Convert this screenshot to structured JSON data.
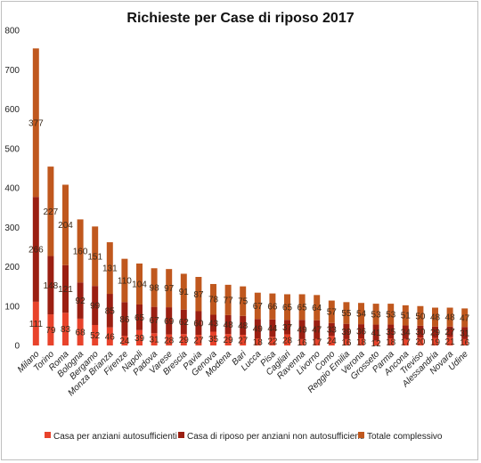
{
  "chart_data": {
    "type": "bar",
    "stacked": true,
    "title": "Richieste per Case di riposo 2017",
    "xlabel": "",
    "ylabel": "",
    "ylim": [
      0,
      800
    ],
    "yticks": [
      0,
      100,
      200,
      300,
      400,
      500,
      600,
      700,
      800
    ],
    "grid": false,
    "legend_position": "bottom",
    "categories": [
      "Milano",
      "Torino",
      "Roma",
      "Bologna",
      "Bergamo",
      "Monza Brianza",
      "Firenze",
      "Napoli",
      "Padova",
      "Varese",
      "Brescia",
      "Pavia",
      "Genova",
      "Modena",
      "Bari",
      "Lucca",
      "Pisa",
      "Cagliari",
      "Ravenna",
      "Livorno",
      "Como",
      "Reggio Emilia",
      "Verona",
      "Grosseto",
      "Parma",
      "Ancona",
      "Treviso",
      "Alessandria",
      "Novara",
      "Udine"
    ],
    "series": [
      {
        "name": "Casa per anziani autosufficienti",
        "color": "#e8432b",
        "values": [
          111,
          79,
          83,
          68,
          52,
          46,
          24,
          39,
          31,
          28,
          29,
          27,
          35,
          29,
          27,
          18,
          22,
          28,
          16,
          17,
          24,
          16,
          18,
          12,
          18,
          17,
          20,
          19,
          21,
          16
        ]
      },
      {
        "name": "Casa di riposo per anziani non autosufficienti",
        "color": "#9b1f12",
        "values": [
          266,
          148,
          121,
          92,
          99,
          85,
          86,
          65,
          67,
          69,
          62,
          60,
          43,
          48,
          48,
          49,
          44,
          37,
          49,
          47,
          33,
          39,
          36,
          41,
          35,
          34,
          30,
          29,
          27,
          31
        ]
      },
      {
        "name": "Totale complessivo",
        "color": "#c0581e",
        "values": [
          377,
          227,
          204,
          160,
          151,
          131,
          110,
          104,
          98,
          97,
          91,
          87,
          78,
          77,
          75,
          67,
          66,
          65,
          65,
          64,
          57,
          55,
          54,
          53,
          53,
          51,
          50,
          48,
          48,
          47
        ]
      }
    ]
  }
}
